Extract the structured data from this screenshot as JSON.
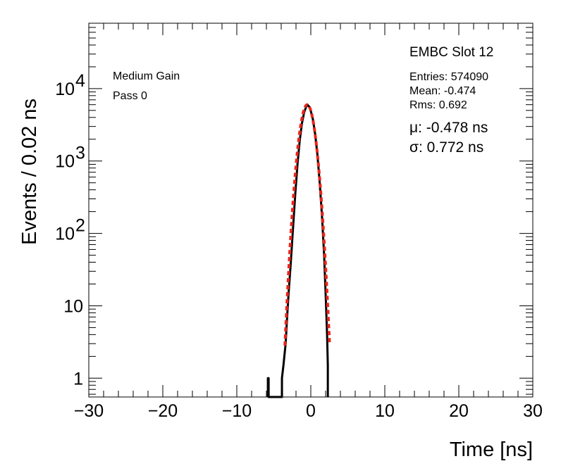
{
  "chart_data": {
    "type": "line",
    "title": "EMBC Slot 12",
    "xlabel": "Time [ns]",
    "ylabel": "Events / 0.02 ns",
    "xlim": [
      -30,
      30
    ],
    "ylim": [
      0.55,
      80000
    ],
    "yscale": "log",
    "grid": false,
    "x_ticks": [
      -30,
      -20,
      -10,
      0,
      10,
      20,
      30
    ],
    "x_tick_labels": [
      "−30",
      "−20",
      "−10",
      "0",
      "10",
      "20",
      "30"
    ],
    "y_ticks": [
      {
        "value": 1,
        "base": "1",
        "exp": ""
      },
      {
        "value": 10,
        "base": "10",
        "exp": ""
      },
      {
        "value": 100,
        "base": "10",
        "exp": "2"
      },
      {
        "value": 1000,
        "base": "10",
        "exp": "3"
      },
      {
        "value": 10000,
        "base": "10",
        "exp": "4"
      }
    ],
    "annotations": {
      "gain": "Medium Gain",
      "pass": "Pass 0",
      "entries": "Entries: 574090",
      "mean": "Mean: -0.474",
      "rms": "Rms: 0.692",
      "mu": "μ: -0.478 ns",
      "sigma": "σ: 0.772 ns"
    },
    "series": [
      {
        "role": "histogram",
        "color": "#000000",
        "points": [
          [
            -5.8,
            0.55
          ],
          [
            -5.8,
            1
          ],
          [
            -5.7,
            1
          ],
          [
            -5.7,
            0.55
          ],
          [
            -3.9,
            0.55
          ],
          [
            -3.9,
            1
          ],
          [
            -3.7,
            1.5
          ],
          [
            -3.4,
            3
          ],
          [
            -3.2,
            7
          ],
          [
            -3.0,
            15
          ],
          [
            -2.7,
            40
          ],
          [
            -2.4,
            120
          ],
          [
            -2.1,
            350
          ],
          [
            -1.8,
            900
          ],
          [
            -1.5,
            1900
          ],
          [
            -1.2,
            3300
          ],
          [
            -0.9,
            4700
          ],
          [
            -0.6,
            5700
          ],
          [
            -0.4,
            5900
          ],
          [
            -0.2,
            5600
          ],
          [
            0.0,
            4900
          ],
          [
            0.3,
            3700
          ],
          [
            0.6,
            2300
          ],
          [
            0.9,
            1200
          ],
          [
            1.2,
            500
          ],
          [
            1.5,
            180
          ],
          [
            1.8,
            50
          ],
          [
            2.0,
            15
          ],
          [
            2.2,
            4
          ],
          [
            2.3,
            1.5
          ],
          [
            2.3,
            0.55
          ]
        ]
      },
      {
        "role": "gaussian-fit",
        "color": "#e8251c",
        "mu": -0.478,
        "sigma": 0.772,
        "peak": 6000,
        "x_range": [
          -3.5,
          2.55
        ]
      }
    ]
  }
}
